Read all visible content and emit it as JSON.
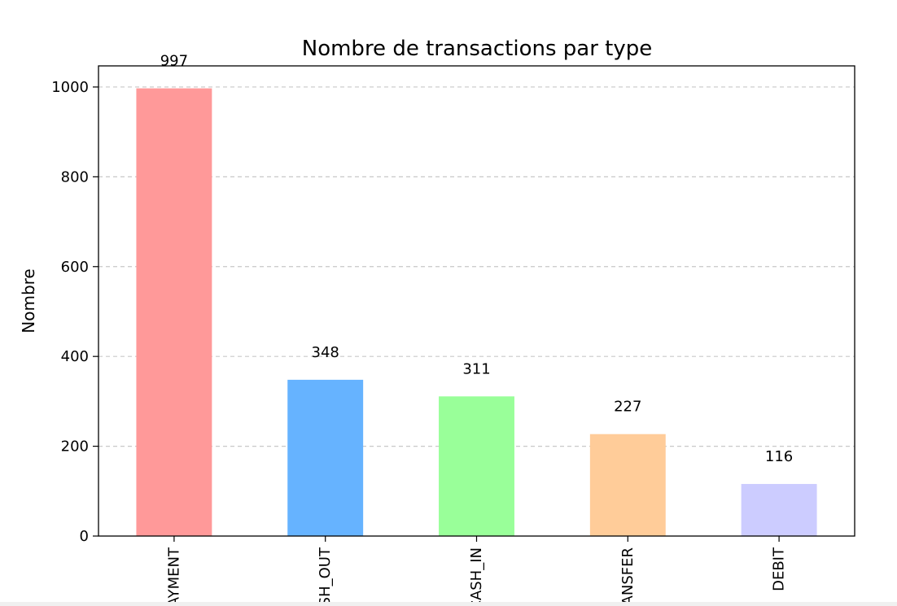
{
  "chart_data": {
    "type": "bar",
    "title": "Nombre de transactions par type",
    "xlabel": "",
    "ylabel": "Nombre",
    "categories": [
      "PAYMENT",
      "CASH_OUT",
      "CASH_IN",
      "TRANSFER",
      "DEBIT"
    ],
    "values": [
      997,
      348,
      311,
      227,
      116
    ],
    "data_labels": [
      "997",
      "348",
      "311",
      "227",
      "116"
    ],
    "colors": [
      "#ff9999",
      "#66b3ff",
      "#99ff99",
      "#ffcc99",
      "#ccccff"
    ],
    "ylim": [
      0,
      1047
    ],
    "yticks": [
      0,
      200,
      400,
      600,
      800,
      1000
    ],
    "grid": "y-dashed",
    "legend": "none"
  }
}
